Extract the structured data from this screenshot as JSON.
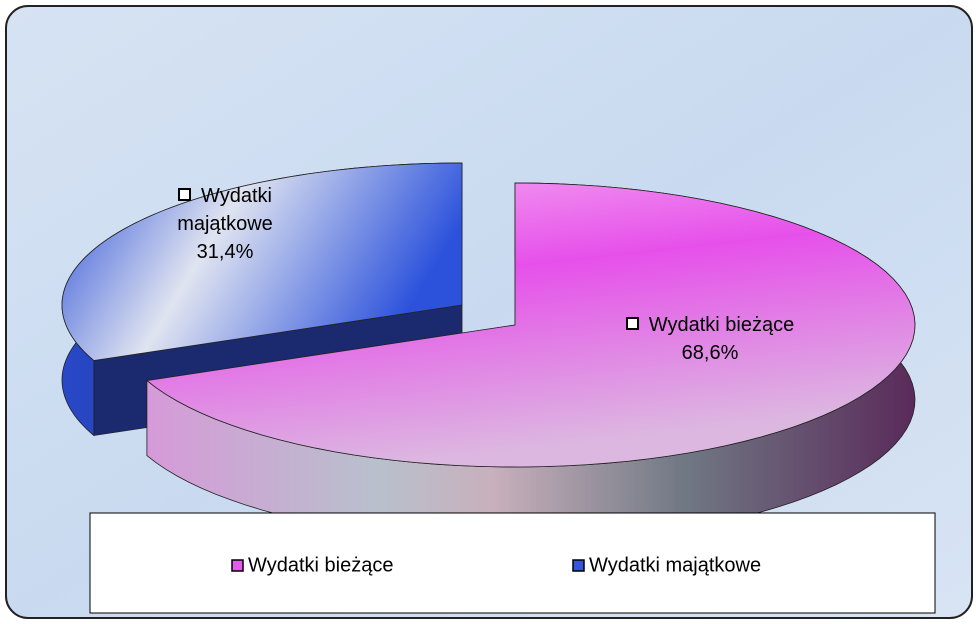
{
  "chart_data": {
    "type": "pie",
    "categories": [
      "Wydatki bieżące",
      "Wydatki majątkowe"
    ],
    "values": [
      68.6,
      31.4
    ],
    "value_labels": [
      "68,6%",
      "31,4%"
    ],
    "colors": [
      "#e35ee8",
      "#3556dc"
    ],
    "legend": "bottom"
  }
}
